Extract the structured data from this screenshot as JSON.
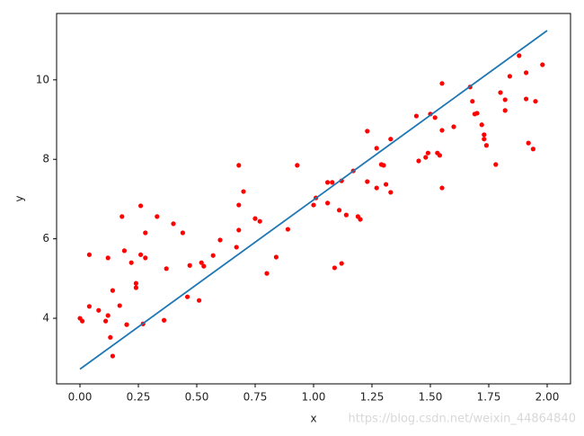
{
  "chart_data": {
    "type": "scatter",
    "xlabel": "x",
    "ylabel": "y",
    "annotation": "https://blog.csdn.net/weixin_44864840",
    "xlim": [
      -0.1,
      2.1
    ],
    "ylim": [
      2.35,
      11.67
    ],
    "xticks": [
      {
        "value": 0,
        "label": "0.00"
      },
      {
        "value": 0.25,
        "label": "0.25"
      },
      {
        "value": 0.5,
        "label": "0.50"
      },
      {
        "value": 0.75,
        "label": "0.75"
      },
      {
        "value": 1,
        "label": "1.00"
      },
      {
        "value": 1.25,
        "label": "1.25"
      },
      {
        "value": 1.5,
        "label": "1.50"
      },
      {
        "value": 1.75,
        "label": "1.75"
      },
      {
        "value": 2,
        "label": "2.00"
      }
    ],
    "yticks": [
      4,
      6,
      8,
      10
    ],
    "grid": false,
    "points": {
      "color": "#ff0000",
      "x": [
        0.0,
        0.01,
        0.04,
        0.04,
        0.08,
        0.11,
        0.12,
        0.12,
        0.14,
        0.13,
        0.14,
        0.17,
        0.18,
        0.19,
        0.2,
        0.22,
        0.24,
        0.24,
        0.26,
        0.26,
        0.27,
        0.28,
        0.28,
        0.33,
        0.36,
        0.37,
        0.4,
        0.44,
        0.46,
        0.47,
        0.51,
        0.52,
        0.53,
        0.57,
        0.6,
        0.67,
        0.68,
        0.68,
        0.68,
        0.7,
        0.75,
        0.77,
        0.8,
        0.84,
        0.89,
        0.93,
        1.0,
        1.01,
        1.06,
        1.06,
        1.08,
        1.09,
        1.11,
        1.12,
        1.12,
        1.14,
        1.17,
        1.19,
        1.2,
        1.23,
        1.23,
        1.27,
        1.27,
        1.29,
        1.3,
        1.31,
        1.33,
        1.33,
        1.44,
        1.45,
        1.48,
        1.49,
        1.5,
        1.52,
        1.53,
        1.54,
        1.55,
        1.55,
        1.55,
        1.6,
        1.67,
        1.68,
        1.69,
        1.7,
        1.72,
        1.73,
        1.73,
        1.74,
        1.78,
        1.8,
        1.82,
        1.82,
        1.84,
        1.88,
        1.91,
        1.91,
        1.92,
        1.94,
        1.95,
        1.98
      ],
      "y": [
        4.0,
        3.93,
        5.6,
        4.3,
        4.2,
        3.93,
        4.07,
        5.52,
        4.7,
        3.52,
        3.05,
        4.32,
        6.56,
        5.7,
        3.84,
        5.4,
        4.88,
        4.77,
        6.83,
        5.6,
        3.86,
        6.15,
        5.52,
        6.56,
        3.95,
        5.25,
        6.38,
        6.15,
        4.54,
        5.33,
        4.45,
        5.4,
        5.31,
        5.58,
        5.97,
        5.79,
        7.85,
        6.85,
        6.22,
        7.19,
        6.51,
        6.44,
        5.13,
        5.54,
        6.24,
        7.85,
        6.85,
        7.03,
        7.42,
        6.9,
        7.42,
        5.27,
        6.72,
        7.46,
        5.38,
        6.6,
        7.71,
        6.56,
        6.49,
        8.71,
        7.44,
        8.28,
        7.28,
        7.87,
        7.85,
        7.37,
        7.17,
        8.51,
        9.09,
        7.96,
        8.05,
        8.16,
        9.14,
        9.05,
        8.16,
        8.1,
        9.91,
        8.73,
        7.28,
        8.82,
        9.82,
        9.46,
        9.14,
        9.16,
        8.87,
        8.62,
        8.51,
        8.35,
        7.87,
        9.68,
        9.5,
        9.23,
        10.09,
        10.61,
        10.18,
        9.52,
        8.41,
        8.26,
        9.46,
        10.38
      ]
    },
    "line": {
      "color": "#1f77b4",
      "x": [
        0,
        2
      ],
      "y": [
        2.72,
        11.24
      ]
    }
  }
}
